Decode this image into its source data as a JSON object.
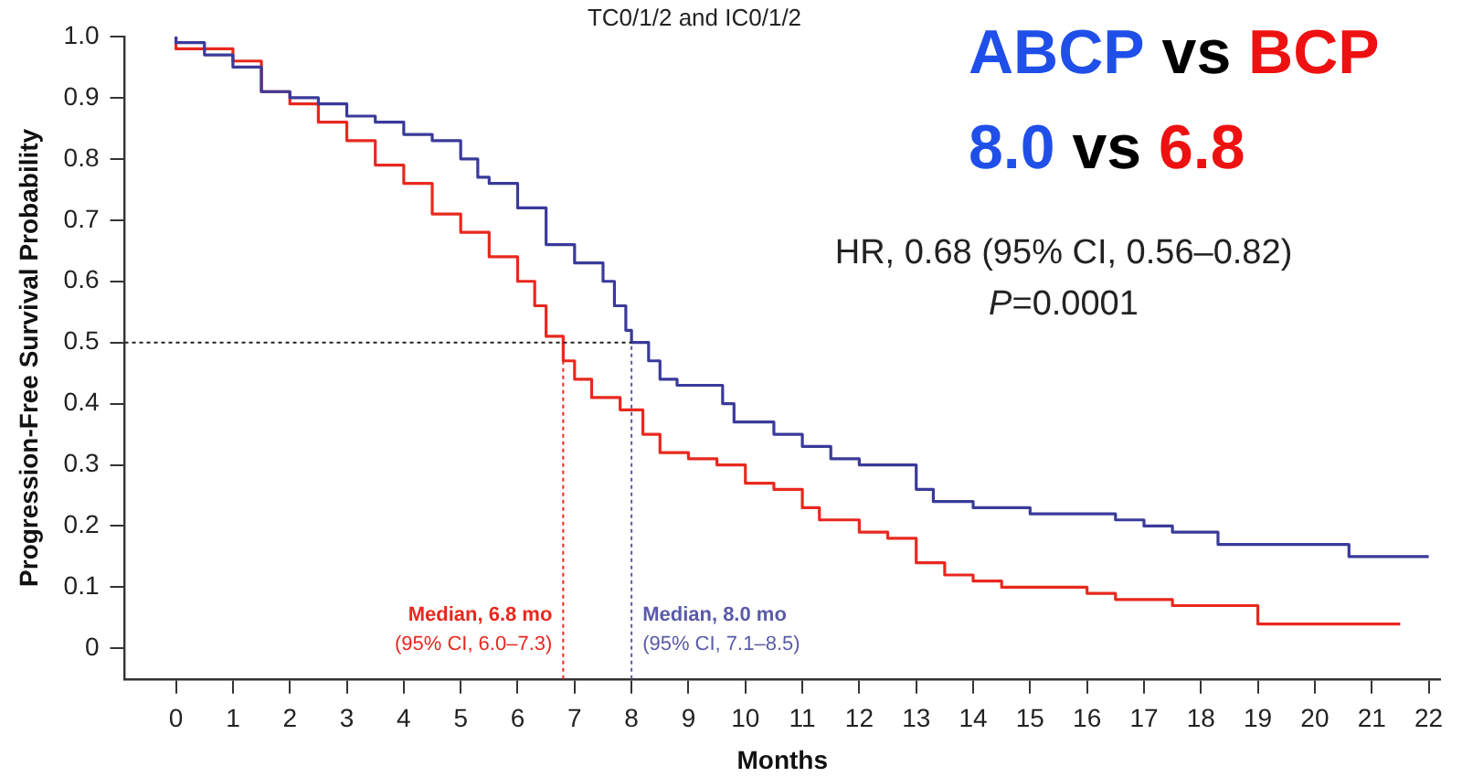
{
  "chart_data": {
    "type": "step",
    "subtitle": "TC0/1/2 and IC0/1/2",
    "xlabel": "Months",
    "ylabel": "Progression-Free Survival Probability",
    "annotations": [
      "ABCP vs BCP",
      "8.0 vs 6.8",
      "HR, 0.68 (95% CI, 0.56–0.82)",
      "P=0.0001"
    ],
    "series": [
      {
        "color": "#3a3a9a",
        "x": [
          0,
          0.5,
          1,
          1.5,
          2,
          2.5,
          3,
          3.5,
          4,
          4.5,
          5,
          5.3,
          5.5,
          6,
          6.5,
          7,
          7.5,
          7.7,
          7.9,
          8,
          8.3,
          8.5,
          8.8,
          9,
          9.6,
          9.8,
          10.5,
          11,
          11.5,
          12,
          13,
          13.3,
          13.5,
          14,
          15,
          16.5,
          17,
          17.5,
          18.3,
          19,
          20.6,
          20.7,
          22
        ],
        "values": [
          1,
          0.99,
          0.97,
          0.95,
          0.91,
          0.9,
          0.89,
          0.87,
          0.86,
          0.84,
          0.83,
          0.8,
          0.77,
          0.76,
          0.72,
          0.66,
          0.63,
          0.6,
          0.56,
          0.52,
          0.5,
          0.47,
          0.44,
          0.43,
          0.43,
          0.4,
          0.37,
          0.35,
          0.33,
          0.31,
          0.3,
          0.26,
          0.24,
          0.24,
          0.23,
          0.22,
          0.21,
          0.2,
          0.19,
          0.17,
          0.17,
          0.15,
          0.15
        ]
      },
      {
        "color": "#e8281e",
        "x": [
          0,
          1,
          1.5,
          2,
          2.5,
          3,
          3.5,
          4,
          4.5,
          5,
          5.5,
          6,
          6.3,
          6.5,
          6.8,
          7,
          7.3,
          7.8,
          8.2,
          8.5,
          9,
          9.5,
          10,
          10.5,
          11,
          11.3,
          12,
          12.5,
          13,
          13.5,
          14,
          14.5,
          16,
          16.5,
          17.5,
          19,
          19.2,
          21.5
        ],
        "values": [
          1,
          0.98,
          0.96,
          0.91,
          0.89,
          0.86,
          0.83,
          0.79,
          0.76,
          0.71,
          0.68,
          0.64,
          0.6,
          0.56,
          0.51,
          0.47,
          0.44,
          0.41,
          0.39,
          0.35,
          0.32,
          0.31,
          0.3,
          0.27,
          0.26,
          0.23,
          0.21,
          0.19,
          0.18,
          0.14,
          0.12,
          0.11,
          0.1,
          0.09,
          0.08,
          0.07,
          0.04,
          0.04
        ]
      }
    ],
    "ref_lines": [
      {
        "axis": "y",
        "value": 0.5,
        "color": "#222222",
        "line_style": "dotted"
      },
      {
        "axis": "x",
        "value": 6.8,
        "color": "#e8281e",
        "line_style": "dotted",
        "label": "Median, 6.8 mo\n(95% CI, 6.0–7.3)"
      },
      {
        "axis": "x",
        "value": 8.0,
        "color": "#5a5aa8",
        "line_style": "dotted",
        "label": "Median, 8.0 mo\n(95% CI, 7.1–8.5)"
      }
    ],
    "xlim": [
      -0.9,
      22.2
    ],
    "xticks": [
      0,
      1,
      2,
      3,
      4,
      5,
      6,
      7,
      8,
      9,
      10,
      11,
      12,
      13,
      14,
      15,
      16,
      17,
      18,
      19,
      20,
      21,
      22
    ],
    "ylim": [
      -0.05,
      1.0
    ],
    "yticks": [
      0,
      0.1,
      0.2,
      0.3,
      0.4,
      0.5,
      0.6,
      0.7,
      0.8,
      0.9,
      {
        "value": 1,
        "label": "1.0"
      }
    ],
    "grid": false,
    "legend": false
  }
}
